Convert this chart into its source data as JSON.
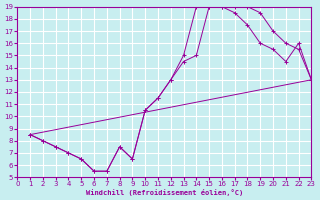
{
  "xlabel": "Windchill (Refroidissement éolien,°C)",
  "bg_color": "#c8eef0",
  "grid_color": "#ffffff",
  "line_color": "#990099",
  "marker": "+",
  "xlim": [
    0,
    23
  ],
  "ylim": [
    5,
    19
  ],
  "xticks": [
    0,
    1,
    2,
    3,
    4,
    5,
    6,
    7,
    8,
    9,
    10,
    11,
    12,
    13,
    14,
    15,
    16,
    17,
    18,
    19,
    20,
    21,
    22,
    23
  ],
  "yticks": [
    5,
    6,
    7,
    8,
    9,
    10,
    11,
    12,
    13,
    14,
    15,
    16,
    17,
    18,
    19
  ],
  "line1_x": [
    1,
    2,
    3,
    4,
    5,
    6,
    7,
    8,
    9,
    10,
    11,
    12,
    13,
    14,
    15,
    16,
    17,
    18,
    19,
    20,
    21,
    22,
    23
  ],
  "line1_y": [
    8.5,
    8.0,
    7.5,
    7.0,
    6.5,
    5.5,
    5.5,
    7.5,
    6.5,
    10.5,
    11.5,
    13.0,
    14.5,
    15.0,
    19.0,
    19.0,
    19.0,
    19.0,
    18.5,
    17.0,
    16.0,
    15.5,
    13.0
  ],
  "line2_x": [
    1,
    2,
    3,
    4,
    5,
    6,
    7,
    8,
    9,
    10,
    11,
    12,
    13,
    14,
    15,
    16,
    17,
    18,
    19,
    20,
    21,
    22,
    23
  ],
  "line2_y": [
    8.5,
    8.0,
    7.5,
    7.0,
    6.5,
    5.5,
    5.5,
    7.5,
    6.5,
    10.5,
    11.5,
    13.0,
    15.0,
    19.0,
    19.0,
    19.0,
    18.5,
    17.5,
    16.0,
    15.5,
    14.5,
    16.0,
    13.0
  ],
  "line3_x": [
    1,
    23
  ],
  "line3_y": [
    8.5,
    13.0
  ]
}
